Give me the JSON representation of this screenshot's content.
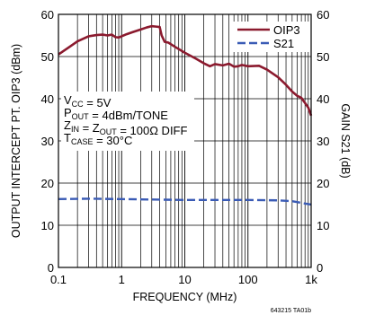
{
  "chart_data": {
    "type": "line",
    "xlabel": "FREQUENCY (MHz)",
    "ylabel_left": "OUTPUT INTERCEPT PT. OIP3 (dBm)",
    "ylabel_right": "GAIN S21 (dB)",
    "x_scale": "log",
    "xlim": [
      0.1,
      1000
    ],
    "ylim_left": [
      0,
      60
    ],
    "ylim_right": [
      0,
      60
    ],
    "x_ticks": [
      {
        "value": 0.1,
        "label": "0.1"
      },
      {
        "value": 1,
        "label": "1"
      },
      {
        "value": 10,
        "label": "10"
      },
      {
        "value": 100,
        "label": "100"
      },
      {
        "value": 1000,
        "label": "1k"
      }
    ],
    "y_ticks_left": [
      0,
      10,
      20,
      30,
      40,
      50,
      60
    ],
    "y_ticks_right": [
      0,
      10,
      20,
      30,
      40,
      50,
      60
    ],
    "grid": true,
    "legend_position": "top-right",
    "series": [
      {
        "name": "OIP3",
        "axis": "left",
        "color": "#8b1a2e",
        "style": "solid",
        "x": [
          0.1,
          0.15,
          0.2,
          0.3,
          0.4,
          0.5,
          0.6,
          0.7,
          0.8,
          0.9,
          1.0,
          1.2,
          1.5,
          2.0,
          2.5,
          3.0,
          3.5,
          4.0,
          4.3,
          4.8,
          5.5,
          7,
          10,
          15,
          20,
          25,
          30,
          40,
          50,
          60,
          70,
          80,
          100,
          150,
          200,
          300,
          400,
          500,
          600,
          700,
          800,
          900,
          1000
        ],
        "y": [
          50.5,
          52.3,
          53.6,
          54.8,
          55.1,
          55.2,
          55.0,
          55.2,
          54.6,
          54.5,
          54.8,
          55.3,
          55.8,
          56.4,
          56.9,
          57.2,
          57.1,
          57.0,
          55.0,
          53.5,
          53.3,
          52.3,
          50.9,
          49.5,
          48.4,
          47.7,
          48.2,
          47.9,
          48.3,
          47.6,
          47.7,
          48.0,
          47.7,
          47.8,
          46.9,
          45.1,
          43.3,
          41.7,
          40.7,
          40.2,
          39.0,
          37.9,
          36.0
        ]
      },
      {
        "name": "S21",
        "axis": "right",
        "color": "#3a5bb5",
        "style": "dashed",
        "x": [
          0.1,
          0.3,
          1,
          3,
          10,
          30,
          100,
          300,
          500,
          700,
          1000
        ],
        "y": [
          16.2,
          16.3,
          16.2,
          16.1,
          16.0,
          16.0,
          16.0,
          15.9,
          15.7,
          15.3,
          14.9
        ]
      }
    ],
    "annotations": [
      {
        "base": "V",
        "sub": "CC",
        "rest": " = 5V"
      },
      {
        "base": "P",
        "sub": "OUT",
        "rest": " = 4dBm/TONE"
      },
      {
        "base": "Z",
        "sub": "IN",
        "mid": " = Z",
        "sub2": "OUT",
        "rest": " = 100Ω DIFF"
      },
      {
        "base": "T",
        "sub": "CASE",
        "rest": " = 30°C"
      }
    ],
    "footnote": "643215 TA01b"
  }
}
